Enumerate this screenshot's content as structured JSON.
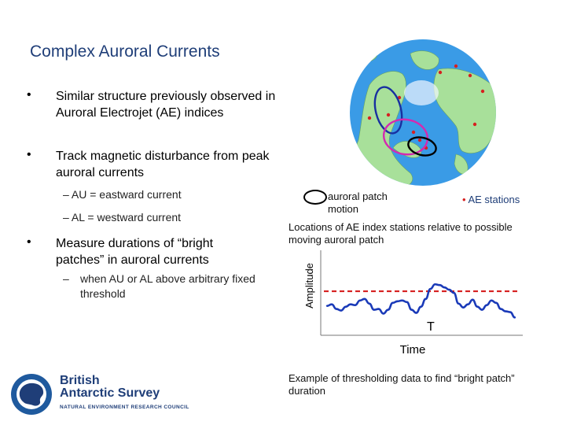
{
  "slide": {
    "title": "Complex Auroral Currents",
    "bullets": [
      {
        "text": "Similar structure previously observed in Auroral Electrojet (AE) indices"
      },
      {
        "text": "Track magnetic disturbance from peak auroral currents",
        "subitems": [
          "AU = eastward current",
          "AL = westward current"
        ]
      },
      {
        "text": "Measure durations of “bright patches” in auroral currents",
        "subitems": [
          "when AU or AL above arbitrary fixed threshold"
        ]
      }
    ]
  },
  "map_figure": {
    "legend_patch_label": "auroral patch motion",
    "legend_station_marker": "•",
    "legend_station_label": "AE stations",
    "caption": "Locations of AE index stations relative to possible moving auroral patch",
    "colors": {
      "ocean": "#3a9be6",
      "land": "#a8e09a",
      "stations": "#d62020",
      "patch_1": "#1830a0",
      "patch_2": "#d42ab0",
      "patch_3": "#000000"
    }
  },
  "chart_data": {
    "type": "line",
    "xlabel": "Time",
    "ylabel": "Amplitude",
    "threshold_label": "T",
    "series_color": "#1a3ab8",
    "threshold_color": "#d62020",
    "ylim": [
      0,
      10
    ],
    "threshold": 5.3,
    "x": [
      0,
      1,
      2,
      3,
      4,
      5,
      6,
      7,
      8,
      9,
      10,
      11,
      12,
      13,
      14,
      15,
      16,
      17,
      18,
      19,
      20,
      21,
      22,
      23,
      24,
      25,
      26,
      27,
      28,
      29,
      30,
      31,
      32,
      33,
      34,
      35,
      36,
      37,
      38,
      39,
      40
    ],
    "values": [
      3.4,
      3.6,
      3.0,
      2.8,
      3.3,
      3.6,
      3.5,
      4.1,
      4.3,
      3.7,
      2.9,
      3.0,
      2.4,
      2.9,
      3.8,
      4.0,
      4.1,
      3.9,
      2.9,
      2.5,
      3.3,
      4.3,
      5.6,
      6.2,
      6.1,
      5.8,
      5.5,
      5.1,
      3.7,
      3.2,
      3.6,
      4.2,
      3.3,
      2.9,
      3.5,
      4.1,
      3.8,
      3.0,
      2.7,
      2.6,
      1.9
    ],
    "caption": "Example of thresholding data to find “bright patch” duration"
  },
  "logo": {
    "line1": "British",
    "line2": "Antarctic Survey",
    "line3": "NATURAL ENVIRONMENT RESEARCH COUNCIL",
    "color": "#1f3e78"
  }
}
